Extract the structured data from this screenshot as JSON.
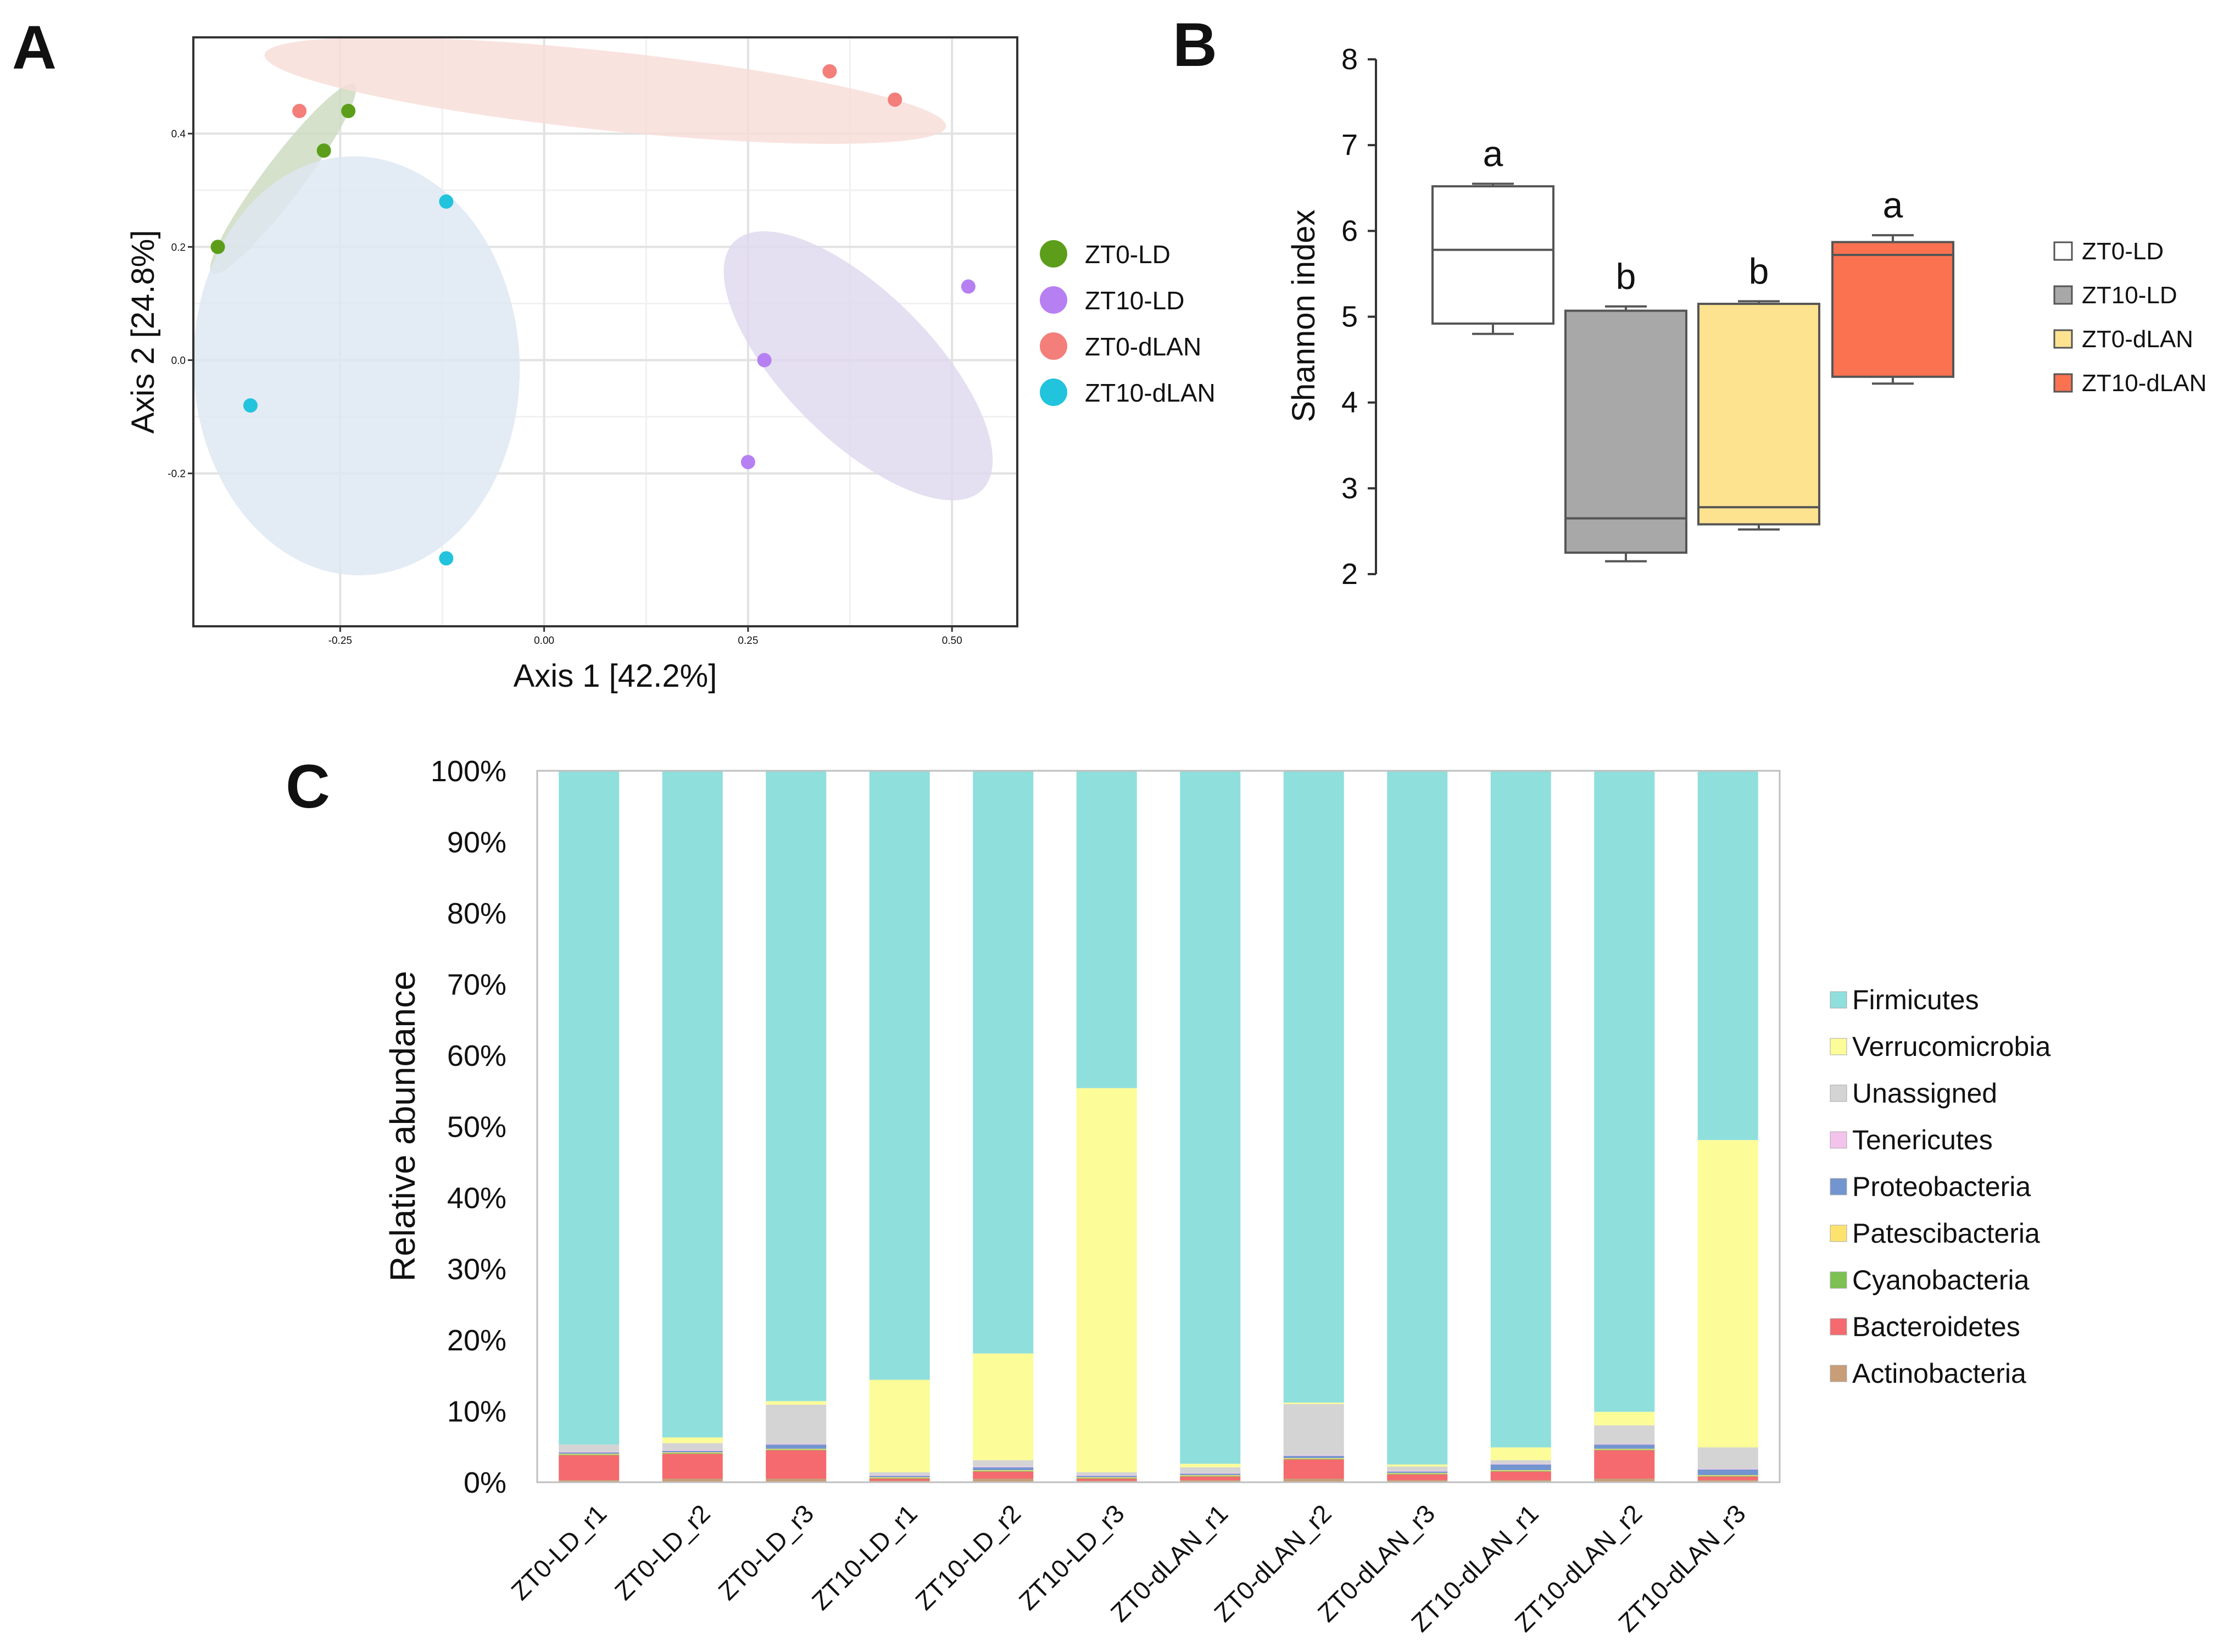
{
  "chart_data": [
    {
      "panel": "A",
      "type": "scatter",
      "xlabel": "Axis 1 [42.2%]",
      "ylabel": "Axis 2 [24.8%]",
      "xlim": [
        -0.43,
        0.58
      ],
      "ylim": [
        -0.47,
        0.57
      ],
      "x_ticks": [
        -0.25,
        0.0,
        0.25,
        0.5
      ],
      "x_tick_labels": [
        "-0.25",
        "0.00",
        "0.25",
        "0.50"
      ],
      "y_ticks": [
        0.4,
        0.2,
        0.0,
        -0.2
      ],
      "y_tick_labels": [
        "0.4",
        "0.2",
        "0.0",
        "-0.2"
      ],
      "series": [
        {
          "name": "ZT0-LD",
          "color": "#5c9e1a",
          "fill": "#ccdbc0",
          "points": [
            [
              -0.4,
              0.2
            ],
            [
              -0.27,
              0.37
            ],
            [
              -0.24,
              0.44
            ]
          ],
          "ellipse": {
            "cx": -0.32,
            "cy": 0.32,
            "rx": 0.145,
            "ry": 0.035,
            "angle": -53
          }
        },
        {
          "name": "ZT10-LD",
          "color": "#b680f2",
          "fill": "#ded8ee",
          "points": [
            [
              0.52,
              0.13
            ],
            [
              0.27,
              0.0
            ],
            [
              0.25,
              -0.18
            ]
          ],
          "ellipse": {
            "cx": 0.385,
            "cy": -0.01,
            "rx": 0.215,
            "ry": 0.13,
            "angle": 45
          }
        },
        {
          "name": "ZT0-dLAN",
          "color": "#f47e7a",
          "fill": "#f8ddd8",
          "points": [
            [
              -0.3,
              0.44
            ],
            [
              0.35,
              0.51
            ],
            [
              0.43,
              0.46
            ]
          ],
          "ellipse": {
            "cx": 0.075,
            "cy": 0.476,
            "rx": 0.42,
            "ry": 0.07,
            "angle": 6
          }
        },
        {
          "name": "ZT10-dLAN",
          "color": "#22c3dd",
          "fill": "#dde7f2",
          "points": [
            [
              -0.12,
              0.28
            ],
            [
              -0.36,
              -0.08
            ],
            [
              -0.12,
              -0.35
            ]
          ],
          "ellipse": {
            "cx": -0.23,
            "cy": -0.01,
            "rx": 0.2,
            "ry": 0.37,
            "angle": -2
          }
        }
      ]
    },
    {
      "panel": "B",
      "type": "box",
      "ylabel": "Shannon index",
      "ylim": [
        2,
        8
      ],
      "y_ticks": [
        2,
        3,
        4,
        5,
        6,
        7,
        8
      ],
      "groups": [
        {
          "name": "ZT0-LD",
          "color": "#ffffff",
          "min": 4.8,
          "q1": 4.92,
          "median": 5.78,
          "q3": 6.52,
          "max": 6.55,
          "letter": "a"
        },
        {
          "name": "ZT10-LD",
          "color": "#a8a8a8",
          "min": 2.15,
          "q1": 2.25,
          "median": 2.65,
          "q3": 5.07,
          "max": 5.12,
          "letter": "b"
        },
        {
          "name": "ZT0-dLAN",
          "color": "#fde390",
          "min": 2.52,
          "q1": 2.58,
          "median": 2.78,
          "q3": 5.15,
          "max": 5.18,
          "letter": "b"
        },
        {
          "name": "ZT10-dLAN",
          "color": "#fb7251",
          "min": 4.22,
          "q1": 4.3,
          "median": 5.72,
          "q3": 5.87,
          "max": 5.95,
          "letter": "a"
        }
      ]
    },
    {
      "panel": "C",
      "type": "stacked_bar",
      "ylabel": "Relative abundance",
      "y_ticks": [
        "0%",
        "10%",
        "20%",
        "30%",
        "40%",
        "50%",
        "60%",
        "70%",
        "80%",
        "90%",
        "100%"
      ],
      "categories": [
        "ZT0-LD_r1",
        "ZT0-LD_r2",
        "ZT0-LD_r3",
        "ZT10-LD_r1",
        "ZT10-LD_r2",
        "ZT10-LD_r3",
        "ZT0-dLAN_r1",
        "ZT0-dLAN_r2",
        "ZT0-dLAN_r3",
        "ZT10-dLAN_r1",
        "ZT10-dLAN_r2",
        "ZT10-dLAN_r3"
      ],
      "series": [
        {
          "name": "Actinobacteria",
          "color": "#c79e78",
          "values": [
            0.3,
            0.5,
            0.5,
            0.2,
            0.5,
            0.2,
            0.3,
            0.5,
            0.3,
            0.3,
            0.5,
            0.3
          ]
        },
        {
          "name": "Bacteroidetes",
          "color": "#f46a6e",
          "values": [
            3.5,
            3.5,
            4.0,
            0.3,
            1.0,
            0.3,
            0.5,
            2.7,
            0.8,
            1.2,
            4.0,
            0.5
          ]
        },
        {
          "name": "Cyanobacteria",
          "color": "#7cc152",
          "values": [
            0.1,
            0.1,
            0.1,
            0.1,
            0.1,
            0.1,
            0.1,
            0.1,
            0.1,
            0.1,
            0.1,
            0.1
          ]
        },
        {
          "name": "Patescibacteria",
          "color": "#fde36e",
          "values": [
            0.1,
            0.1,
            0.1,
            0.1,
            0.1,
            0.1,
            0.1,
            0.1,
            0.1,
            0.1,
            0.1,
            0.1
          ]
        },
        {
          "name": "Proteobacteria",
          "color": "#7395cf",
          "values": [
            0.2,
            0.2,
            0.6,
            0.2,
            0.4,
            0.2,
            0.2,
            0.3,
            0.2,
            0.8,
            0.6,
            0.8
          ]
        },
        {
          "name": "Tenericutes",
          "color": "#f4c3ec",
          "values": [
            0.1,
            0.1,
            0.1,
            0.1,
            0.1,
            0.1,
            0.1,
            0.1,
            0.1,
            0.1,
            0.1,
            0.1
          ]
        },
        {
          "name": "Unassigned",
          "color": "#d4d4d4",
          "values": [
            1.0,
            1.0,
            5.5,
            0.4,
            0.9,
            0.4,
            0.8,
            7.2,
            0.6,
            0.5,
            2.6,
            3.0
          ]
        },
        {
          "name": "Verrucomicrobia",
          "color": "#fcfc99",
          "values": [
            0.0,
            0.8,
            0.5,
            13.0,
            15.0,
            54.0,
            0.5,
            0.2,
            0.3,
            1.8,
            1.9,
            43.2
          ]
        },
        {
          "name": "Firmicutes",
          "color": "#8fdfdd",
          "values": [
            94.7,
            93.7,
            88.6,
            85.6,
            81.9,
            44.6,
            97.4,
            88.8,
            97.5,
            95.1,
            90.1,
            51.9
          ]
        }
      ],
      "legend_order": [
        "Firmicutes",
        "Verrucomicrobia",
        "Unassigned",
        "Tenericutes",
        "Proteobacteria",
        "Patescibacteria",
        "Cyanobacteria",
        "Bacteroidetes",
        "Actinobacteria"
      ]
    }
  ],
  "panel_labels": {
    "a": "A",
    "b": "B",
    "c": "C"
  }
}
